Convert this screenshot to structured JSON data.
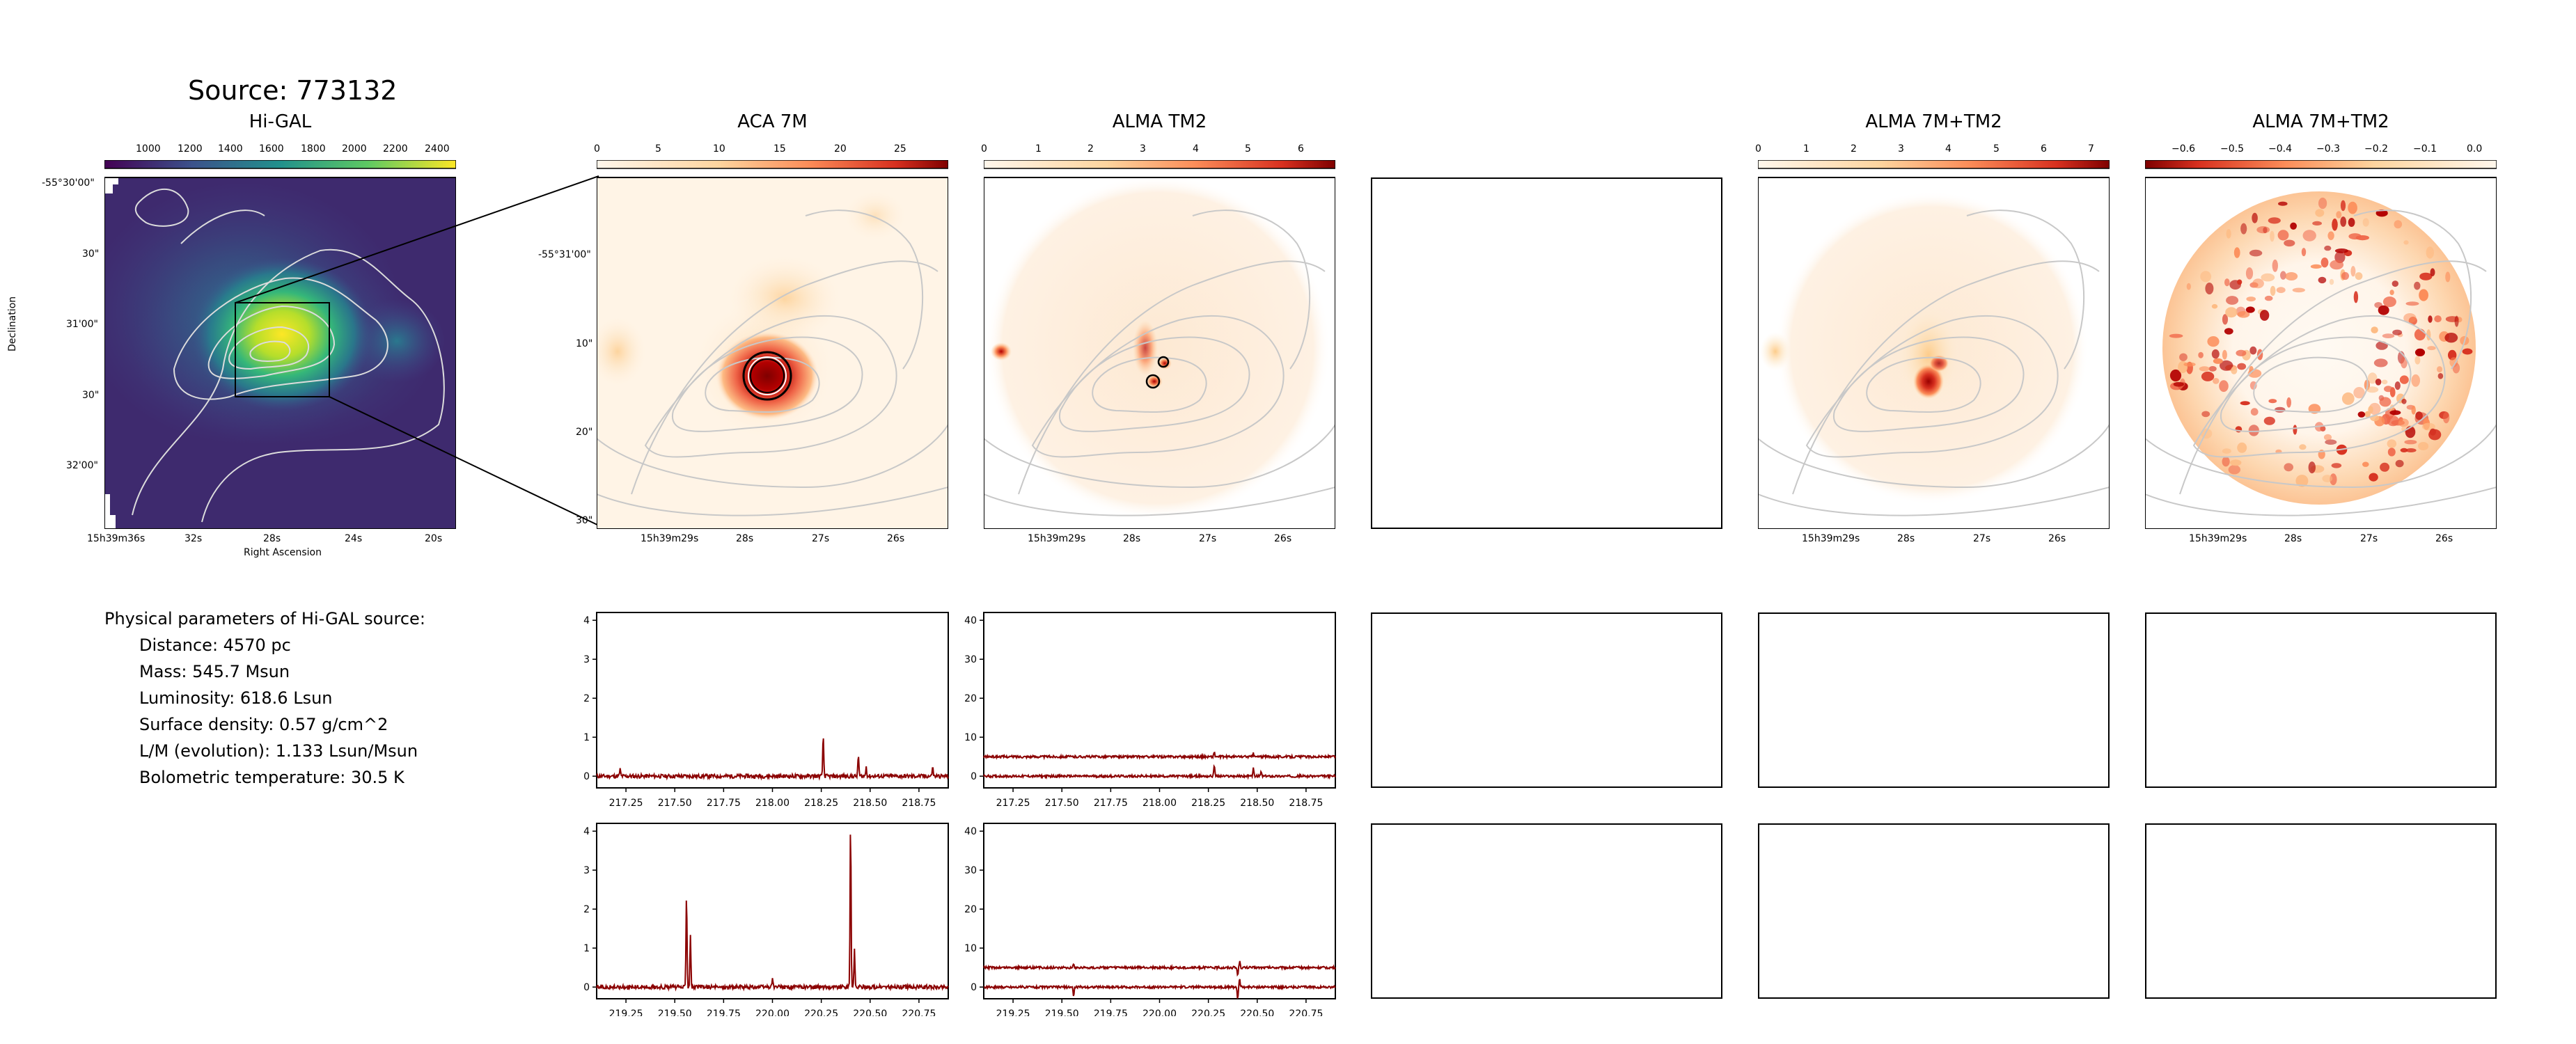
{
  "page": {
    "title": "Source: 773132"
  },
  "maps": [
    {
      "title": "Hi-GAL",
      "colormap": "viridis",
      "colorbar_ticks": [
        "1000",
        "1200",
        "1400",
        "1600",
        "1800",
        "2000",
        "2200",
        "2400"
      ],
      "x_ticks": [
        "15h39m36s",
        "32s",
        "28s",
        "24s",
        "20s"
      ],
      "y_ticks": [
        "-55°30'00\"",
        "30\"",
        "31'00\"",
        "30\"",
        "32'00\""
      ],
      "xlabel": "Right Ascension",
      "ylabel": "Declination"
    },
    {
      "title": "ACA 7M",
      "colormap": "OrRd",
      "colorbar_ticks": [
        "0",
        "5",
        "10",
        "15",
        "20",
        "25"
      ],
      "x_ticks": [
        "15h39m29s",
        "28s",
        "27s",
        "26s"
      ],
      "y_ticks": [
        "-55°31'00\"",
        "10\"",
        "20\"",
        "30\""
      ]
    },
    {
      "title": "ALMA TM2",
      "colormap": "OrRd",
      "colorbar_ticks": [
        "0",
        "1",
        "2",
        "3",
        "4",
        "5",
        "6"
      ],
      "x_ticks": [
        "15h39m29s",
        "28s",
        "27s",
        "26s"
      ]
    },
    {
      "title": "",
      "empty": true
    },
    {
      "title": "ALMA 7M+TM2",
      "colormap": "OrRd",
      "colorbar_ticks": [
        "0",
        "1",
        "2",
        "3",
        "4",
        "5",
        "6",
        "7"
      ],
      "x_ticks": [
        "15h39m29s",
        "28s",
        "27s",
        "26s"
      ]
    },
    {
      "title": "ALMA 7M+TM2",
      "colormap": "OrRd_r",
      "colorbar_ticks": [
        "−0.6",
        "−0.5",
        "−0.4",
        "−0.3",
        "−0.2",
        "−0.1",
        "0.0"
      ],
      "x_ticks": [
        "15h39m29s",
        "28s",
        "27s",
        "26s"
      ]
    }
  ],
  "params": {
    "heading": "Physical parameters of Hi-GAL source:",
    "lines": [
      "Distance: 4570 pc",
      "Mass: 545.7 Msun",
      "Luminosity: 618.6 Lsun",
      "Surface density: 0.57 g/cm^2",
      "L/M (evolution): 1.133 Lsun/Msun",
      "Bolometric temperature: 30.5 K"
    ]
  },
  "chart_data": [
    {
      "type": "line",
      "panel": "spectrum-row1-aca",
      "x_range": [
        217.1,
        218.9
      ],
      "ylim": [
        -0.3,
        4.2
      ],
      "x_ticks": [
        "217.25",
        "217.50",
        "217.75",
        "218.00",
        "218.25",
        "218.50",
        "218.75"
      ],
      "y_ticks": [
        "0",
        "1",
        "2",
        "3",
        "4"
      ],
      "baseline": 0,
      "noise": 0.05,
      "peaks": [
        [
          217.22,
          0.18
        ],
        [
          218.26,
          1.05
        ],
        [
          218.44,
          0.55
        ],
        [
          218.48,
          0.25
        ],
        [
          218.82,
          0.25
        ]
      ]
    },
    {
      "type": "line",
      "panel": "spectrum-row1-tm2",
      "x_range": [
        217.1,
        218.9
      ],
      "ylim": [
        -3,
        42
      ],
      "x_ticks": [
        "217.25",
        "217.50",
        "217.75",
        "218.00",
        "218.25",
        "218.50",
        "218.75"
      ],
      "y_ticks": [
        "0",
        "10",
        "20",
        "30",
        "40"
      ],
      "series": [
        {
          "baseline": 0,
          "noise": 0.3,
          "peaks": [
            [
              218.28,
              3.0
            ],
            [
              218.48,
              2.0
            ],
            [
              218.52,
              1.2
            ]
          ]
        },
        {
          "baseline": 5,
          "noise": 0.3,
          "peaks": [
            [
              218.28,
              1.2
            ],
            [
              218.48,
              0.8
            ]
          ]
        }
      ]
    },
    {
      "type": "line",
      "panel": "spectrum-row2-aca",
      "x_range": [
        219.1,
        220.9
      ],
      "ylim": [
        -0.3,
        4.2
      ],
      "x_ticks": [
        "219.25",
        "219.50",
        "219.75",
        "220.00",
        "220.25",
        "220.50",
        "220.75"
      ],
      "y_ticks": [
        "0",
        "1",
        "2",
        "3",
        "4"
      ],
      "baseline": 0,
      "noise": 0.05,
      "peaks": [
        [
          219.56,
          2.45
        ],
        [
          219.58,
          1.35
        ],
        [
          220.0,
          0.25
        ],
        [
          220.4,
          4.25
        ],
        [
          220.42,
          0.95
        ]
      ]
    },
    {
      "type": "line",
      "panel": "spectrum-row2-tm2",
      "x_range": [
        219.1,
        220.9
      ],
      "ylim": [
        -3,
        42
      ],
      "x_ticks": [
        "219.25",
        "219.50",
        "219.75",
        "220.00",
        "220.25",
        "220.50",
        "220.75"
      ],
      "y_ticks": [
        "0",
        "10",
        "20",
        "30",
        "40"
      ],
      "series": [
        {
          "baseline": 0,
          "noise": 0.3,
          "peaks": [
            [
              219.56,
              -2.5
            ],
            [
              220.4,
              -3.0
            ],
            [
              220.41,
              2.0
            ]
          ]
        },
        {
          "baseline": 5,
          "noise": 0.3,
          "peaks": [
            [
              219.56,
              0.8
            ],
            [
              220.4,
              -2.0
            ],
            [
              220.41,
              1.5
            ]
          ]
        }
      ]
    }
  ],
  "colors": {
    "spectrum_line": "#8b0000",
    "contour": "#b0b0b0",
    "frame": "#000000"
  }
}
